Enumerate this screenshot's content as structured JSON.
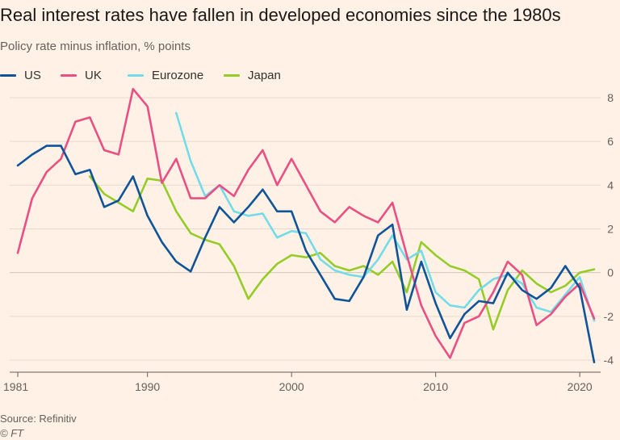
{
  "header": {
    "title": "Real interest rates have fallen in developed economies since the 1980s",
    "subtitle": "Policy rate minus inflation, % points"
  },
  "footer": {
    "source": "Source: Refinitiv",
    "credit": "© FT"
  },
  "chart_data": {
    "type": "line",
    "title": "Real interest rates have fallen in developed economies since the 1980s",
    "subtitle": "Policy rate minus inflation, % points",
    "xlabel": "",
    "ylabel": "",
    "xlim": [
      1981,
      2021
    ],
    "ylim": [
      -4.3,
      8.6
    ],
    "x_ticks": [
      1981,
      1990,
      2000,
      2010,
      2020
    ],
    "x_tick_labels": [
      "1981",
      "1990",
      "2000",
      "2010",
      "2020"
    ],
    "y_ticks": [
      -4,
      -2,
      0,
      2,
      4,
      6,
      8
    ],
    "y_tick_labels": [
      "-4",
      "-2",
      "0",
      "2",
      "4",
      "6",
      "8"
    ],
    "y_axis_side": "right",
    "grid": true,
    "legend_position": "top-left",
    "series": [
      {
        "name": "US",
        "color": "#0f5499",
        "x": [
          1981,
          1982,
          1983,
          1984,
          1985,
          1986,
          1987,
          1988,
          1989,
          1990,
          1991,
          1992,
          1993,
          1994,
          1995,
          1996,
          1997,
          1998,
          1999,
          2000,
          2001,
          2002,
          2003,
          2004,
          2005,
          2006,
          2007,
          2008,
          2009,
          2010,
          2011,
          2012,
          2013,
          2014,
          2015,
          2016,
          2017,
          2018,
          2019,
          2020,
          2021
        ],
        "y": [
          4.9,
          5.4,
          5.8,
          5.8,
          4.5,
          4.7,
          3.0,
          3.3,
          4.4,
          2.6,
          1.4,
          0.5,
          0.05,
          1.6,
          3.0,
          2.3,
          3.0,
          3.8,
          2.8,
          2.8,
          1.0,
          -0.1,
          -1.2,
          -1.3,
          -0.2,
          1.7,
          2.2,
          -1.7,
          0.5,
          -1.4,
          -3.0,
          -1.9,
          -1.3,
          -1.4,
          0.0,
          -0.8,
          -1.2,
          -0.7,
          0.3,
          -0.7,
          -4.1
        ]
      },
      {
        "name": "UK",
        "color": "#e94f83",
        "x": [
          1981,
          1982,
          1983,
          1984,
          1985,
          1986,
          1987,
          1988,
          1989,
          1990,
          1991,
          1992,
          1993,
          1994,
          1995,
          1996,
          1997,
          1998,
          1999,
          2000,
          2001,
          2002,
          2003,
          2004,
          2005,
          2006,
          2007,
          2008,
          2009,
          2010,
          2011,
          2012,
          2013,
          2014,
          2015,
          2016,
          2017,
          2018,
          2019,
          2020,
          2021
        ],
        "y": [
          0.9,
          3.4,
          4.6,
          5.2,
          6.9,
          7.1,
          5.6,
          5.4,
          8.4,
          7.6,
          4.1,
          5.2,
          3.4,
          3.4,
          4.0,
          3.5,
          4.7,
          5.6,
          4.0,
          5.2,
          4.0,
          2.8,
          2.3,
          3.0,
          2.6,
          2.3,
          3.2,
          0.8,
          -1.5,
          -2.9,
          -3.9,
          -2.3,
          -2.0,
          -0.9,
          0.5,
          -0.1,
          -2.4,
          -1.9,
          -1.1,
          -0.5,
          -2.1
        ]
      },
      {
        "name": "Eurozone",
        "color": "#74dbe8",
        "x": [
          1992,
          1993,
          1994,
          1995,
          1996,
          1997,
          1998,
          1999,
          2000,
          2001,
          2002,
          2003,
          2004,
          2005,
          2006,
          2007,
          2008,
          2009,
          2010,
          2011,
          2012,
          2013,
          2014,
          2015,
          2016,
          2017,
          2018,
          2019,
          2020,
          2021
        ],
        "y": [
          7.3,
          5.1,
          3.5,
          4.0,
          2.8,
          2.6,
          2.7,
          1.6,
          1.9,
          1.8,
          0.6,
          0.1,
          -0.1,
          -0.2,
          0.6,
          1.7,
          0.6,
          1.0,
          -0.9,
          -1.5,
          -1.6,
          -0.8,
          -0.3,
          -0.1,
          -0.5,
          -1.6,
          -1.8,
          -1.0,
          -0.2,
          -2.2
        ]
      },
      {
        "name": "Japan",
        "color": "#96cc28",
        "x": [
          1986,
          1987,
          1988,
          1989,
          1990,
          1991,
          1992,
          1993,
          1994,
          1995,
          1996,
          1997,
          1998,
          1999,
          2000,
          2001,
          2002,
          2003,
          2004,
          2005,
          2006,
          2007,
          2008,
          2009,
          2010,
          2011,
          2012,
          2013,
          2014,
          2015,
          2016,
          2017,
          2018,
          2019,
          2020,
          2021
        ],
        "y": [
          4.4,
          3.6,
          3.2,
          2.8,
          4.3,
          4.2,
          2.8,
          1.8,
          1.5,
          1.3,
          0.3,
          -1.2,
          -0.3,
          0.4,
          0.8,
          0.7,
          0.9,
          0.3,
          0.1,
          0.3,
          -0.1,
          0.5,
          -0.9,
          1.4,
          0.8,
          0.3,
          0.1,
          -0.3,
          -2.6,
          -0.8,
          0.1,
          -0.5,
          -0.9,
          -0.6,
          0.0,
          0.15
        ]
      }
    ]
  }
}
